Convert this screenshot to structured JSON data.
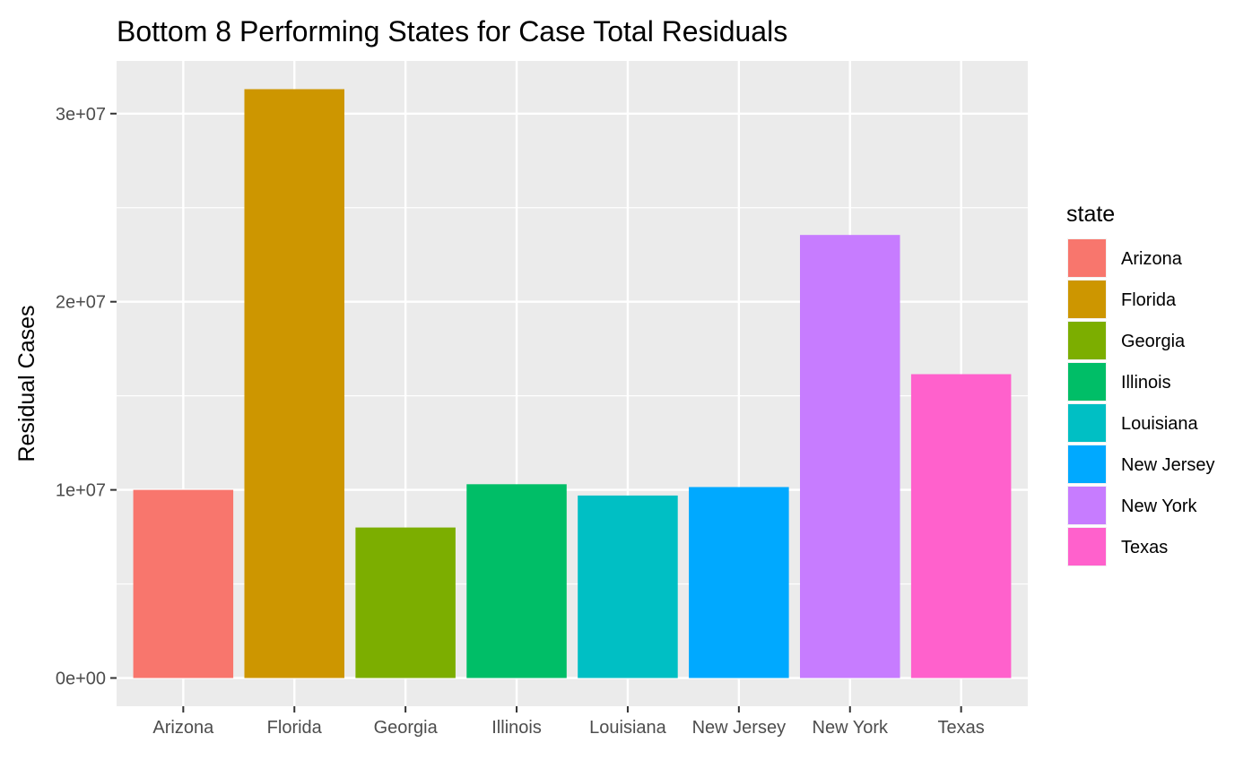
{
  "chart_data": {
    "type": "bar",
    "title": "Bottom 8 Performing States for Case Total Residuals",
    "xlabel": "",
    "ylabel": "Residual Cases",
    "categories": [
      "Arizona",
      "Florida",
      "Georgia",
      "Illinois",
      "Louisiana",
      "New Jersey",
      "New York",
      "Texas"
    ],
    "values": [
      10000000,
      31300000,
      8000000,
      10300000,
      9700000,
      10150000,
      23550000,
      16150000
    ],
    "colors": [
      "#F8766D",
      "#CD9600",
      "#7CAE00",
      "#00BE67",
      "#00BFC4",
      "#00A9FF",
      "#C77CFF",
      "#FF61CC"
    ],
    "ylim": [
      -1500000,
      32800000
    ],
    "yticks": [
      0,
      10000000,
      20000000,
      30000000
    ],
    "ytick_labels": [
      "0e+00",
      "1e+07",
      "2e+07",
      "3e+07"
    ],
    "grid": true,
    "panel_background": "#EBEBEB",
    "legend": {
      "title": "state",
      "placement": "right",
      "entries": [
        "Arizona",
        "Florida",
        "Georgia",
        "Illinois",
        "Louisiana",
        "New Jersey",
        "New York",
        "Texas"
      ]
    }
  }
}
